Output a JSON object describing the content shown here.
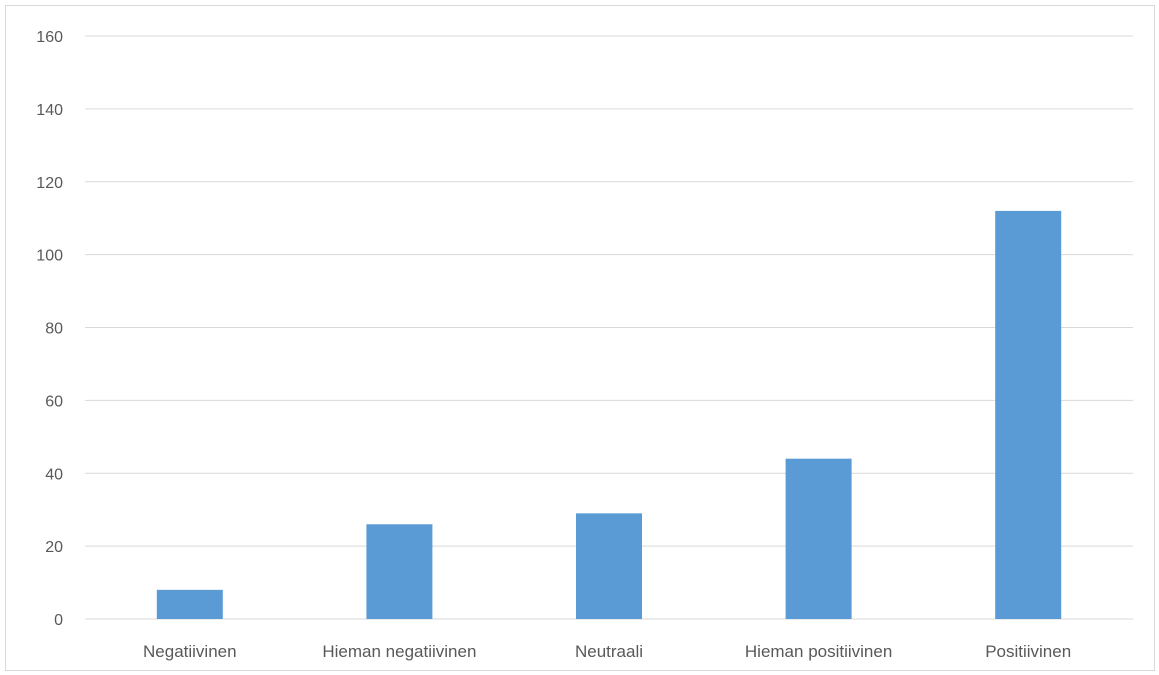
{
  "chart_data": {
    "type": "bar",
    "title": "",
    "xlabel": "",
    "ylabel": "",
    "categories": [
      "Negatiivinen",
      "Hieman negatiivinen",
      "Neutraali",
      "Hieman positiivinen",
      "Positiivinen"
    ],
    "values": [
      8,
      26,
      29,
      44,
      112
    ],
    "ylim": [
      0,
      160
    ],
    "yticks": [
      0,
      20,
      40,
      60,
      80,
      100,
      120,
      140,
      160
    ],
    "grid": true,
    "legend": "none",
    "bar_color": "#5b9bd5",
    "gridline_color": "#d9d9d9",
    "axis_label_color": "#595959"
  }
}
